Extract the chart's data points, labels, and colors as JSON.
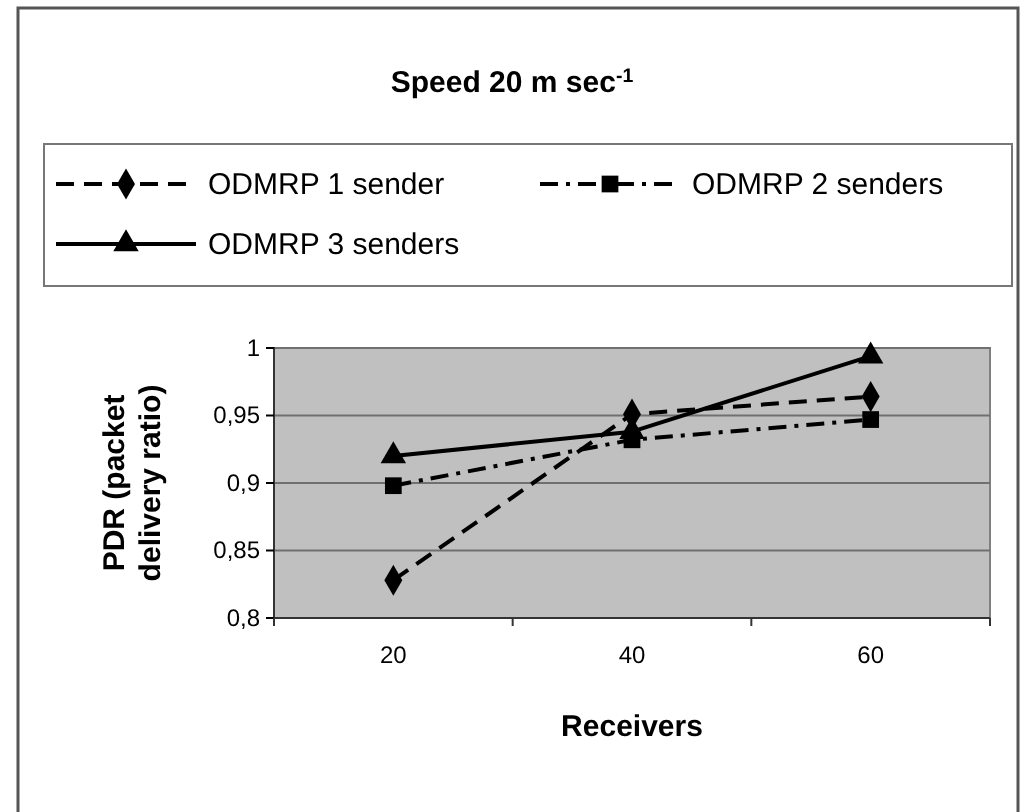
{
  "chart_data": {
    "type": "line",
    "title": "Speed 20 m sec$^{-1}$",
    "xlabel": "Receivers",
    "ylabel": "PDR (packet delivery ratio)",
    "categories": [
      "20",
      "40",
      "60"
    ],
    "series": [
      {
        "name": "ODMRP 1  sender",
        "color": "#000000",
        "values": [
          0.828,
          0.951,
          0.964
        ],
        "marker": "diamond",
        "line_style": "dashed"
      },
      {
        "name": "ODMRP 2  senders",
        "color": "#000000",
        "values": [
          0.898,
          0.932,
          0.947
        ],
        "marker": "square",
        "line_style": "dashdot"
      },
      {
        "name": "ODMRP 3  senders",
        "color": "#000000",
        "values": [
          0.92,
          0.938,
          0.994
        ],
        "marker": "triangle",
        "line_style": "solid"
      }
    ],
    "ylim": [
      0.8,
      1
    ],
    "yticks": [
      {
        "value": 0.8,
        "label": "0,8"
      },
      {
        "value": 0.85,
        "label": "0,85"
      },
      {
        "value": 0.9,
        "label": "0,9"
      },
      {
        "value": 0.95,
        "label": "0,95"
      },
      1
    ],
    "grid": "y",
    "legend": "top"
  }
}
